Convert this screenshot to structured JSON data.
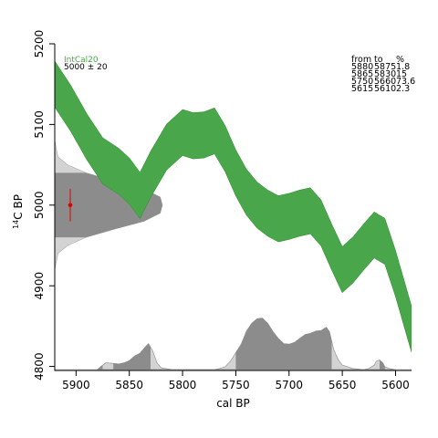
{
  "chart_data": {
    "type": "area",
    "title": "",
    "xlabel": "cal BP",
    "ylabel": "14C BP",
    "xlim": [
      5920,
      5585
    ],
    "ylim": [
      4795,
      5200
    ],
    "xticks": [
      5900,
      5850,
      5800,
      5750,
      5700,
      5650,
      5600
    ],
    "yticks": [
      4800,
      4900,
      5000,
      5100,
      5200
    ],
    "legend": {
      "curve_name": "IntCal20",
      "date_label": "5000 ± 20",
      "curve_color": "#4aa64a"
    },
    "measurement": {
      "c14_age": 5000,
      "error": 20,
      "color": "#dd0000"
    },
    "calibration_curve": {
      "cal_bp": [
        5920,
        5905,
        5890,
        5875,
        5860,
        5850,
        5840,
        5830,
        5815,
        5800,
        5790,
        5780,
        5770,
        5760,
        5750,
        5740,
        5730,
        5720,
        5710,
        5700,
        5690,
        5680,
        5670,
        5660,
        5650,
        5640,
        5630,
        5620,
        5610,
        5600,
        5585
      ],
      "c14_mean": [
        5150,
        5120,
        5085,
        5055,
        5042,
        5030,
        5012,
        5038,
        5072,
        5090,
        5086,
        5087,
        5092,
        5070,
        5040,
        5016,
        5000,
        4990,
        4983,
        4986,
        4990,
        4993,
        4978,
        4948,
        4920,
        4932,
        4948,
        4963,
        4955,
        4915,
        4846
      ],
      "sigma": [
        13,
        13,
        13,
        13,
        13,
        13,
        13,
        13,
        13,
        13,
        13,
        13,
        13,
        13,
        13,
        13,
        13,
        13,
        13,
        13,
        13,
        13,
        13,
        13,
        13,
        13,
        13,
        13,
        13,
        13,
        13
      ]
    },
    "c14_distribution": {
      "c14_bp": [
        4920,
        4940,
        4950,
        4960,
        4970,
        4980,
        4990,
        5000,
        5010,
        5020,
        5030,
        5040,
        5050,
        5060,
        5080
      ],
      "density": [
        0.0,
        0.03,
        0.12,
        0.29,
        0.55,
        0.83,
        0.98,
        1.0,
        0.98,
        0.83,
        0.55,
        0.29,
        0.12,
        0.03,
        0.0
      ]
    },
    "calibrated_distribution": {
      "cal_bp": [
        5880,
        5877,
        5872,
        5865,
        5860,
        5855,
        5850,
        5845,
        5840,
        5835,
        5832,
        5828,
        5824,
        5820,
        5810,
        5790,
        5770,
        5765,
        5760,
        5755,
        5750,
        5745,
        5740,
        5735,
        5730,
        5725,
        5720,
        5715,
        5710,
        5705,
        5700,
        5695,
        5690,
        5685,
        5680,
        5675,
        5670,
        5665,
        5662,
        5658,
        5654,
        5650,
        5640,
        5630,
        5625,
        5620,
        5618,
        5615,
        5612,
        5610,
        5606,
        5600
      ],
      "density": [
        0.0,
        0.05,
        0.12,
        0.11,
        0.1,
        0.12,
        0.16,
        0.24,
        0.29,
        0.4,
        0.46,
        0.33,
        0.12,
        0.03,
        0.0,
        0.0,
        0.0,
        0.02,
        0.05,
        0.15,
        0.3,
        0.45,
        0.68,
        0.82,
        0.9,
        0.91,
        0.82,
        0.67,
        0.55,
        0.46,
        0.45,
        0.48,
        0.55,
        0.62,
        0.64,
        0.68,
        0.69,
        0.75,
        0.67,
        0.35,
        0.18,
        0.08,
        0.02,
        0.0,
        0.02,
        0.08,
        0.15,
        0.17,
        0.12,
        0.05,
        0.02,
        0.0
      ],
      "hpd_ranges": [
        [
          5880,
          5875
        ],
        [
          5865,
          5830
        ],
        [
          5750,
          5660
        ],
        [
          5615,
          5610
        ]
      ]
    },
    "hpd_table": {
      "headers": [
        "from",
        "to",
        "%"
      ],
      "rows": [
        [
          "5880",
          "5875",
          "1.8"
        ],
        [
          "5865",
          "5830",
          "15"
        ],
        [
          "5750",
          "5660",
          "73.6"
        ],
        [
          "5615",
          "5610",
          "2.3"
        ]
      ]
    }
  }
}
